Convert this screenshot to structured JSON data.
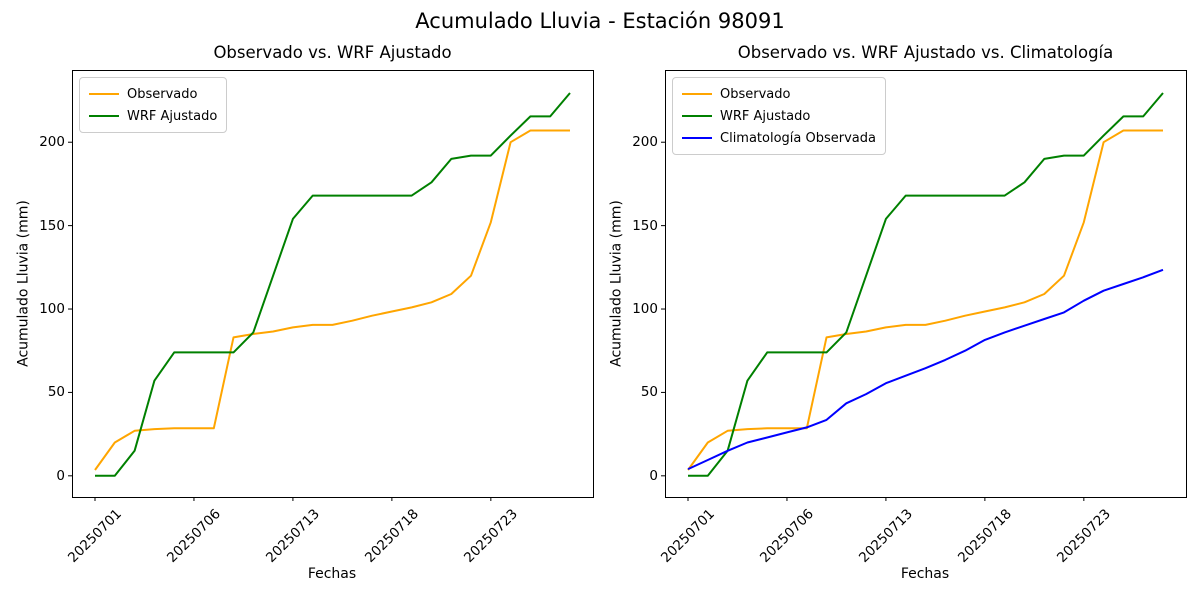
{
  "figure": {
    "title": "Acumulado Lluvia - Estación 98091",
    "background": "#ffffff",
    "text_color": "#000000",
    "spine_color": "#000000"
  },
  "chart_data": [
    {
      "type": "line",
      "title": "Observado vs. WRF Ajustado",
      "xlabel": "Fechas",
      "ylabel": "Acumulado Lluvia (mm)",
      "grid": false,
      "legend_position": "upper left",
      "n_points": 25,
      "x_tick_indices": [
        0,
        5,
        10,
        15,
        20
      ],
      "x_tick_labels": [
        "20250701",
        "20250706",
        "20250713",
        "20250718",
        "20250723"
      ],
      "yticks": [
        0,
        50,
        100,
        150,
        200
      ],
      "ylim": [
        -12.7,
        243.3
      ],
      "series": [
        {
          "name": "Observado",
          "color": "#FFA500",
          "values": [
            3.5,
            20,
            27,
            28,
            28.5,
            28.5,
            28.5,
            83,
            85,
            86.5,
            89,
            90.5,
            90.5,
            93,
            96,
            98.5,
            101,
            104,
            109,
            120,
            152,
            200,
            207,
            207,
            207
          ]
        },
        {
          "name": "WRF Ajustado",
          "color": "#008000",
          "values": [
            0,
            0,
            15,
            57,
            74,
            74,
            74,
            74,
            86,
            120,
            154,
            168,
            168,
            168,
            168,
            168,
            168,
            176,
            190,
            192,
            192,
            204,
            215.5,
            215.5,
            229.5
          ]
        }
      ]
    },
    {
      "type": "line",
      "title": "Observado vs. WRF Ajustado vs. Climatología",
      "xlabel": "Fechas",
      "ylabel": "Acumulado Lluvia (mm)",
      "grid": false,
      "legend_position": "upper left",
      "n_points": 25,
      "x_tick_indices": [
        0,
        5,
        10,
        15,
        20
      ],
      "x_tick_labels": [
        "20250701",
        "20250706",
        "20250713",
        "20250718",
        "20250723"
      ],
      "yticks": [
        0,
        50,
        100,
        150,
        200
      ],
      "ylim": [
        -12.7,
        243.3
      ],
      "series": [
        {
          "name": "Observado",
          "color": "#FFA500",
          "values": [
            3.5,
            20,
            27,
            28,
            28.5,
            28.5,
            28.5,
            83,
            85,
            86.5,
            89,
            90.5,
            90.5,
            93,
            96,
            98.5,
            101,
            104,
            109,
            120,
            152,
            200,
            207,
            207,
            207
          ]
        },
        {
          "name": "WRF Ajustado",
          "color": "#008000",
          "values": [
            0,
            0,
            15,
            57,
            74,
            74,
            74,
            74,
            86,
            120,
            154,
            168,
            168,
            168,
            168,
            168,
            168,
            176,
            190,
            192,
            192,
            204,
            215.5,
            215.5,
            229.5
          ]
        },
        {
          "name": "Climatología Observada",
          "color": "#0000FF",
          "values": [
            4,
            9.5,
            15,
            20,
            23,
            26,
            29,
            33.5,
            43.5,
            49,
            55.5,
            60,
            64.5,
            69.5,
            75,
            81.5,
            86,
            90,
            94,
            98,
            105,
            111,
            115,
            119,
            123.5
          ]
        }
      ]
    }
  ]
}
